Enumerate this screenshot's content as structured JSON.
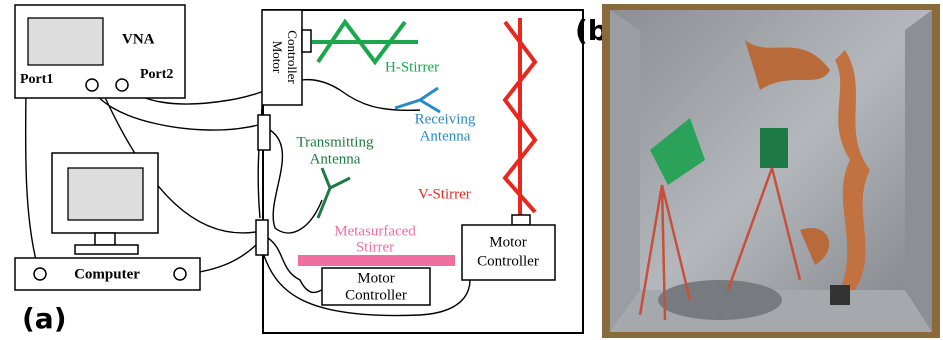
{
  "panel_a": {
    "label": "(a)",
    "vna": {
      "title": "VNA",
      "port1": "Port1",
      "port2": "Port2"
    },
    "computer": "Computer",
    "motor_controller_top": [
      "Motor",
      "Controller"
    ],
    "h_stirrer": "H-Stirrer",
    "receiving_antenna": [
      "Receiving",
      "Antenna"
    ],
    "transmitting_antenna": [
      "Transmitting",
      "Antenna"
    ],
    "v_stirrer": "V-Stirrer",
    "metasurfaced_stirrer": [
      "Metasurfaced",
      "Stirrer"
    ],
    "motor_controller_right": [
      "Motor",
      "Controller"
    ],
    "motor_controller_bottom": [
      "Motor",
      "Controller"
    ]
  },
  "panel_b": {
    "label": "(b)"
  }
}
